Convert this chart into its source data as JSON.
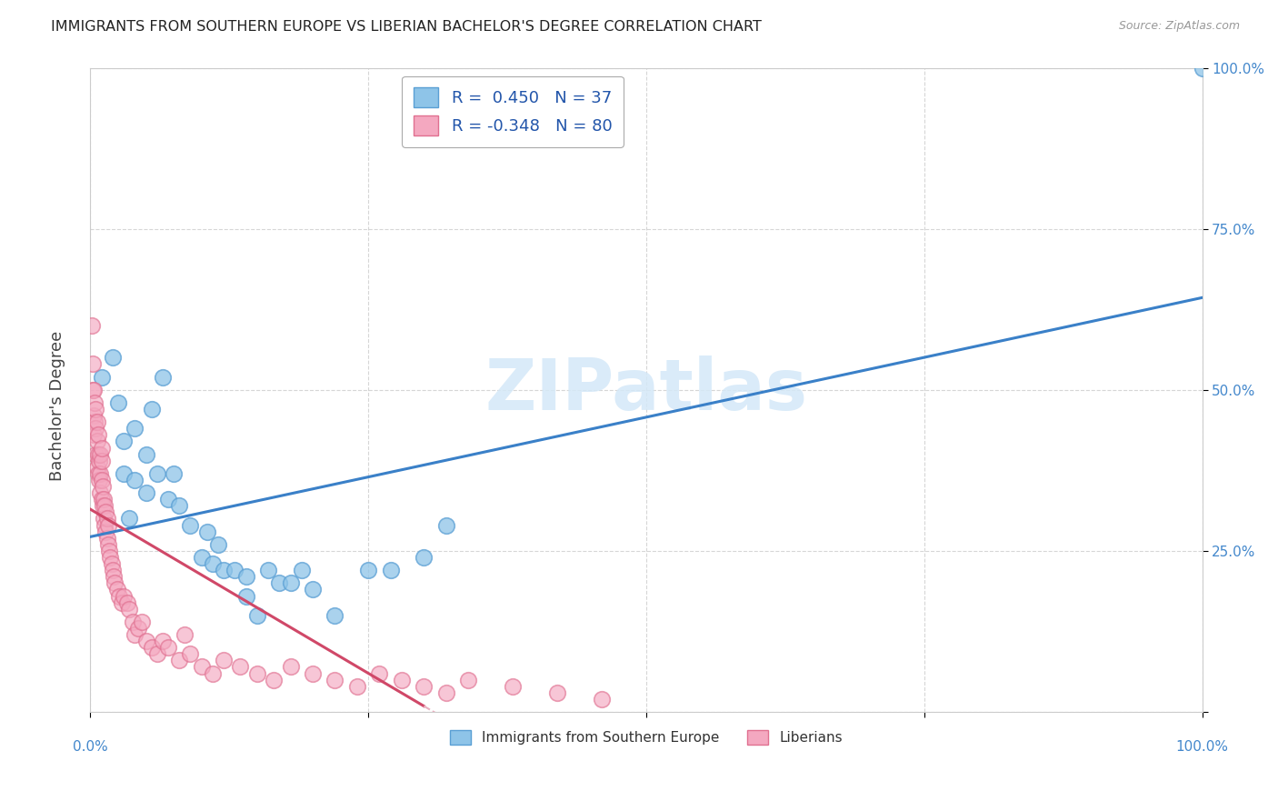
{
  "title": "IMMIGRANTS FROM SOUTHERN EUROPE VS LIBERIAN BACHELOR'S DEGREE CORRELATION CHART",
  "source": "Source: ZipAtlas.com",
  "ylabel": "Bachelor's Degree",
  "watermark": "ZIPatlas",
  "legend_label1": "Immigrants from Southern Europe",
  "legend_label2": "Liberians",
  "R1": 0.45,
  "N1": 37,
  "R2": -0.348,
  "N2": 80,
  "color_blue": "#8ec4e8",
  "color_pink": "#f4a8c0",
  "color_blue_edge": "#5a9fd4",
  "color_pink_edge": "#e07090",
  "color_trend_blue": "#3a80c8",
  "color_trend_pink": "#d04868",
  "color_trend_pink_ext": "#e8b0c0",
  "xlim": [
    0.0,
    1.0
  ],
  "ylim": [
    0.0,
    1.0
  ],
  "blue_x": [
    0.01,
    0.02,
    0.025,
    0.03,
    0.03,
    0.035,
    0.04,
    0.04,
    0.05,
    0.05,
    0.055,
    0.06,
    0.065,
    0.07,
    0.075,
    0.08,
    0.09,
    0.1,
    0.105,
    0.11,
    0.115,
    0.12,
    0.13,
    0.14,
    0.14,
    0.15,
    0.16,
    0.17,
    0.18,
    0.19,
    0.2,
    0.22,
    0.25,
    0.27,
    0.3,
    0.32,
    1.0
  ],
  "blue_y": [
    0.52,
    0.55,
    0.48,
    0.37,
    0.42,
    0.3,
    0.36,
    0.44,
    0.34,
    0.4,
    0.47,
    0.37,
    0.52,
    0.33,
    0.37,
    0.32,
    0.29,
    0.24,
    0.28,
    0.23,
    0.26,
    0.22,
    0.22,
    0.18,
    0.21,
    0.15,
    0.22,
    0.2,
    0.2,
    0.22,
    0.19,
    0.15,
    0.22,
    0.22,
    0.24,
    0.29,
    1.0
  ],
  "pink_x": [
    0.001,
    0.002,
    0.002,
    0.003,
    0.003,
    0.003,
    0.004,
    0.004,
    0.005,
    0.005,
    0.005,
    0.006,
    0.006,
    0.006,
    0.007,
    0.007,
    0.007,
    0.008,
    0.008,
    0.009,
    0.009,
    0.009,
    0.01,
    0.01,
    0.01,
    0.01,
    0.011,
    0.011,
    0.012,
    0.012,
    0.013,
    0.013,
    0.014,
    0.014,
    0.015,
    0.015,
    0.016,
    0.016,
    0.017,
    0.018,
    0.019,
    0.02,
    0.021,
    0.022,
    0.024,
    0.026,
    0.028,
    0.03,
    0.033,
    0.035,
    0.038,
    0.04,
    0.043,
    0.046,
    0.05,
    0.055,
    0.06,
    0.065,
    0.07,
    0.08,
    0.085,
    0.09,
    0.1,
    0.11,
    0.12,
    0.135,
    0.15,
    0.165,
    0.18,
    0.2,
    0.22,
    0.24,
    0.26,
    0.28,
    0.3,
    0.32,
    0.34,
    0.38,
    0.42,
    0.46
  ],
  "pink_y": [
    0.6,
    0.54,
    0.5,
    0.5,
    0.46,
    0.43,
    0.45,
    0.48,
    0.4,
    0.44,
    0.47,
    0.38,
    0.42,
    0.45,
    0.37,
    0.4,
    0.43,
    0.36,
    0.39,
    0.34,
    0.37,
    0.4,
    0.33,
    0.36,
    0.39,
    0.41,
    0.32,
    0.35,
    0.3,
    0.33,
    0.29,
    0.32,
    0.28,
    0.31,
    0.27,
    0.3,
    0.26,
    0.29,
    0.25,
    0.24,
    0.23,
    0.22,
    0.21,
    0.2,
    0.19,
    0.18,
    0.17,
    0.18,
    0.17,
    0.16,
    0.14,
    0.12,
    0.13,
    0.14,
    0.11,
    0.1,
    0.09,
    0.11,
    0.1,
    0.08,
    0.12,
    0.09,
    0.07,
    0.06,
    0.08,
    0.07,
    0.06,
    0.05,
    0.07,
    0.06,
    0.05,
    0.04,
    0.06,
    0.05,
    0.04,
    0.03,
    0.05,
    0.04,
    0.03,
    0.02
  ]
}
